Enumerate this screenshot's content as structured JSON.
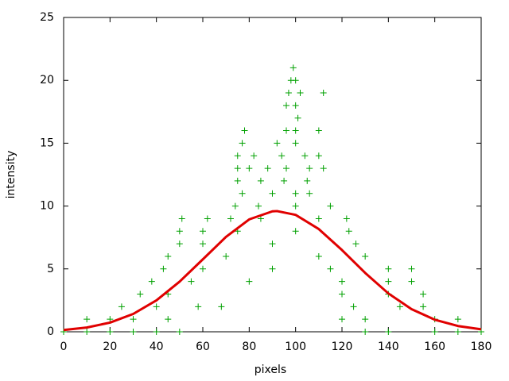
{
  "chart_data": {
    "type": "scatter",
    "xlabel": "pixels",
    "ylabel": "intensity",
    "xlim": [
      0,
      180
    ],
    "xticks": [
      0,
      20,
      40,
      60,
      80,
      100,
      120,
      140,
      160,
      180
    ],
    "ylim": [
      0,
      25
    ],
    "yticks": [
      0,
      5,
      10,
      15,
      20,
      25
    ],
    "series": [
      {
        "type": "scatter",
        "marker": "+",
        "color": "#00a000",
        "x": [
          99,
          98,
          100,
          97,
          102,
          112,
          96,
          100,
          101,
          78,
          96,
          100,
          110,
          77,
          92,
          100,
          75,
          82,
          94,
          104,
          110,
          75,
          80,
          88,
          96,
          106,
          112,
          75,
          85,
          95,
          105,
          77,
          90,
          100,
          106,
          74,
          84,
          100,
          115,
          51,
          62,
          72,
          85,
          110,
          122,
          50,
          60,
          75,
          100,
          123,
          50,
          60,
          90,
          126,
          45,
          70,
          110,
          130,
          43,
          60,
          90,
          115,
          140,
          150,
          38,
          55,
          80,
          120,
          140,
          150,
          33,
          45,
          120,
          140,
          155,
          25,
          40,
          58,
          68,
          125,
          145,
          155,
          10,
          20,
          30,
          45,
          120,
          130,
          160,
          170,
          0,
          10,
          20,
          30,
          40,
          50,
          130,
          140,
          160,
          170,
          180
        ],
        "values": [
          21,
          20,
          20,
          19,
          19,
          19,
          18,
          18,
          17,
          16,
          16,
          16,
          16,
          15,
          15,
          15,
          14,
          14,
          14,
          14,
          14,
          13,
          13,
          13,
          13,
          13,
          13,
          12,
          12,
          12,
          12,
          11,
          11,
          11,
          11,
          10,
          10,
          10,
          10,
          9,
          9,
          9,
          9,
          9,
          9,
          8,
          8,
          8,
          8,
          8,
          7,
          7,
          7,
          7,
          6,
          6,
          6,
          6,
          5,
          5,
          5,
          5,
          5,
          5,
          4,
          4,
          4,
          4,
          4,
          4,
          3,
          3,
          3,
          3,
          3,
          2,
          2,
          2,
          2,
          2,
          2,
          2,
          1,
          1,
          1,
          1,
          1,
          1,
          1,
          1,
          0,
          0,
          0,
          0,
          0,
          0,
          0,
          0,
          0,
          0,
          0
        ]
      },
      {
        "type": "line",
        "color": "#e00000",
        "x": [
          0,
          10,
          20,
          30,
          40,
          50,
          60,
          70,
          80,
          90,
          92,
          100,
          110,
          120,
          130,
          140,
          150,
          160,
          170,
          180
        ],
        "values": [
          0.14,
          0.34,
          0.73,
          1.42,
          2.5,
          3.99,
          5.76,
          7.55,
          8.94,
          9.58,
          9.6,
          9.3,
          8.17,
          6.5,
          4.68,
          3.05,
          1.8,
          0.96,
          0.46,
          0.2
        ]
      }
    ]
  }
}
